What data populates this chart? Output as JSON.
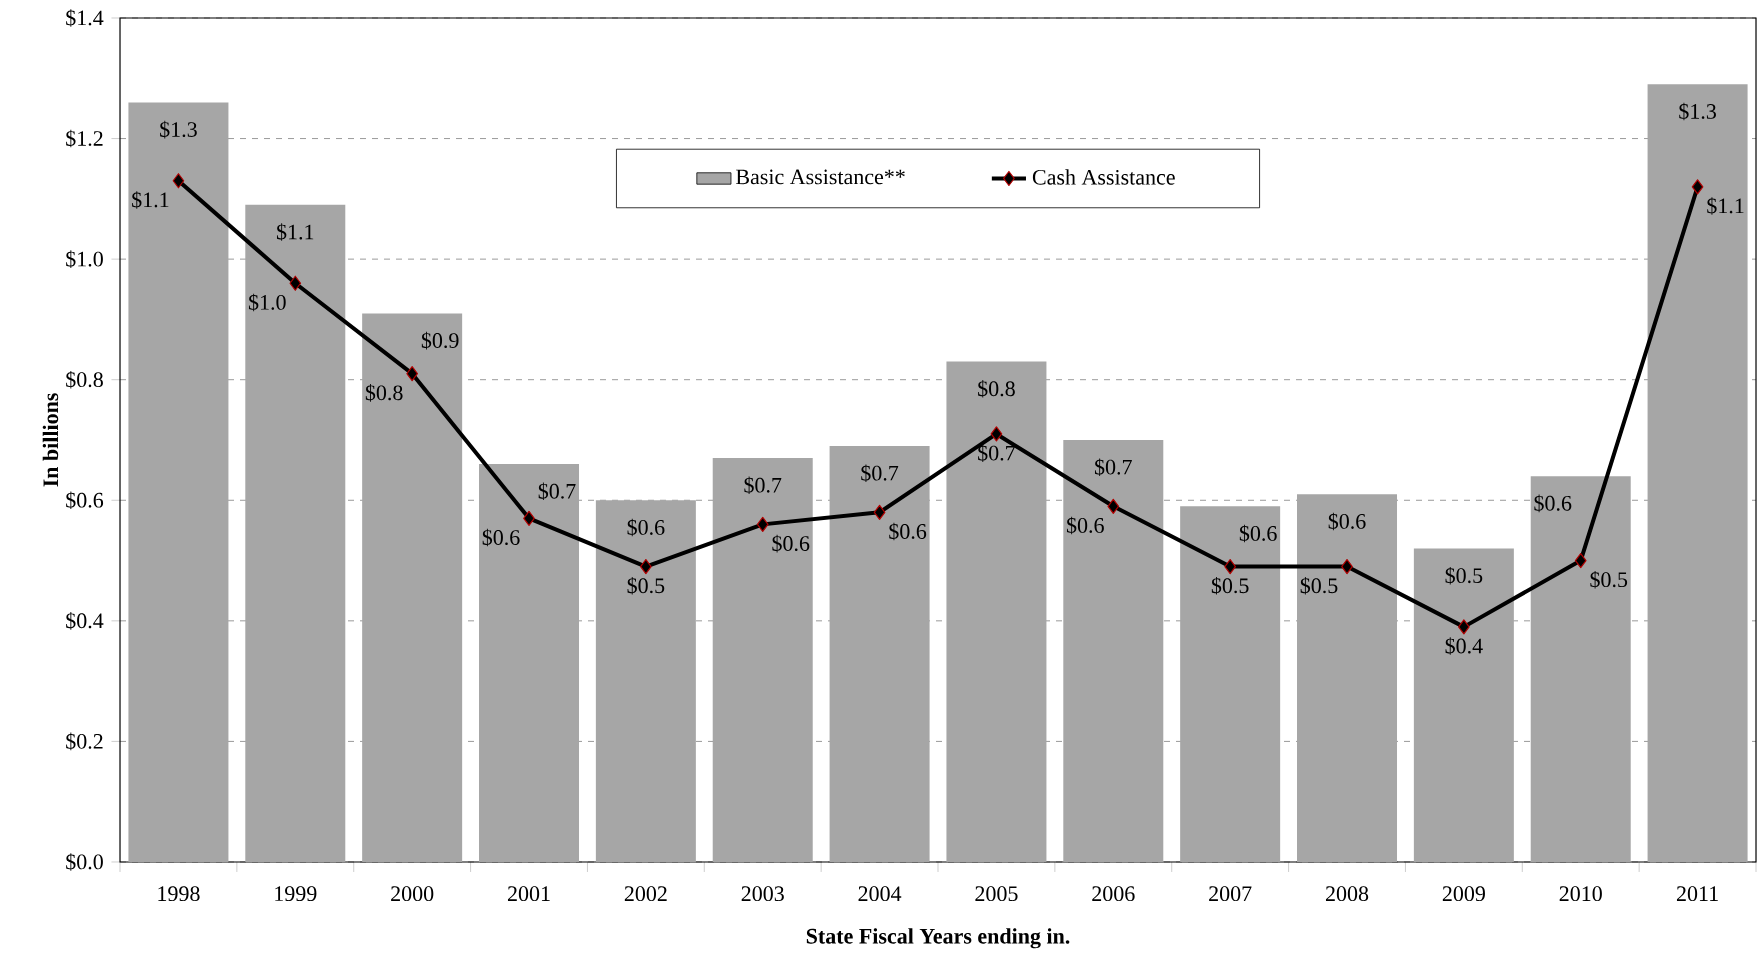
{
  "chart_data": {
    "type": "bar",
    "xlabel": "State Fiscal Years ending in.",
    "ylabel": "In billions",
    "categories": [
      "1998",
      "1999",
      "2000",
      "2001",
      "2002",
      "2003",
      "2004",
      "2005",
      "2006",
      "2007",
      "2008",
      "2009",
      "2010",
      "2011"
    ],
    "series": [
      {
        "name": "Basic Assistance**",
        "color": "#a6a6a6",
        "values": [
          1.26,
          1.09,
          0.91,
          0.66,
          0.6,
          0.67,
          0.69,
          0.83,
          0.7,
          0.59,
          0.61,
          0.52,
          0.64,
          1.29
        ],
        "value_labels": [
          "$1.3",
          "$1.1",
          "$0.9",
          "$0.7",
          "$0.6",
          "$0.7",
          "$0.7",
          "$0.8",
          "$0.7",
          "$0.6",
          "$0.6",
          "$0.5",
          "$0.6",
          "$1.3"
        ]
      },
      {
        "name": "Cash Assistance",
        "type": "line",
        "color": "#000000",
        "marker": "diamond",
        "values": [
          1.13,
          0.96,
          0.81,
          0.57,
          0.49,
          0.56,
          0.58,
          0.71,
          0.59,
          0.49,
          0.49,
          0.39,
          0.5,
          1.12
        ],
        "value_labels": [
          "$1.1",
          "$1.0",
          "$0.8",
          "$0.6",
          "$0.5",
          "$0.6",
          "$0.6",
          "$0.7",
          "$0.6",
          "$0.5",
          "$0.5",
          "$0.4",
          "$0.5",
          "$1.1"
        ]
      }
    ],
    "ylim": [
      0,
      1.4
    ],
    "yticks": [
      {
        "value": 0,
        "label": "$0.0"
      },
      {
        "value": 0.2,
        "label": "$0.2"
      },
      {
        "value": 0.4,
        "label": "$0.4"
      },
      {
        "value": 0.6,
        "label": "$0.6"
      },
      {
        "value": 0.8,
        "label": "$0.8"
      },
      {
        "value": 1.0,
        "label": "$1.0"
      },
      {
        "value": 1.2,
        "label": "$1.2"
      },
      {
        "value": 1.4,
        "label": "$1.4"
      }
    ],
    "grid": "y",
    "legend": "top"
  }
}
